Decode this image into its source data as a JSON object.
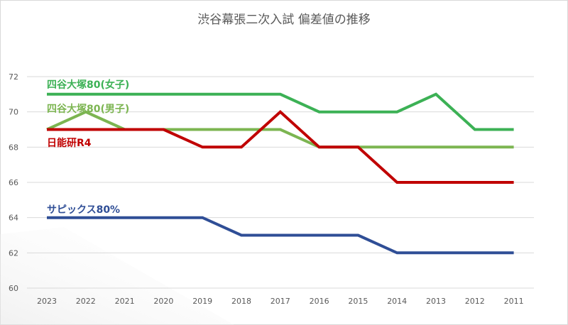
{
  "chart_data": {
    "type": "line",
    "title": "渋谷幕張二次入試 偏差値の推移",
    "xlabel": "",
    "ylabel": "",
    "categories": [
      "2023",
      "2022",
      "2021",
      "2020",
      "2019",
      "2018",
      "2017",
      "2016",
      "2015",
      "2014",
      "2013",
      "2012",
      "2011"
    ],
    "ylim": [
      60,
      72
    ],
    "yticks": [
      60,
      62,
      64,
      66,
      68,
      70,
      72
    ],
    "grid": true,
    "legend": "inline labels",
    "series": [
      {
        "name": "四谷大塚80(女子)",
        "color": "#3cb155",
        "values": [
          71,
          71,
          71,
          71,
          71,
          71,
          71,
          70,
          70,
          70,
          71,
          69,
          69
        ]
      },
      {
        "name": "四谷大塚80(男子)",
        "color": "#7cb551",
        "values": [
          69,
          70,
          69,
          69,
          69,
          69,
          69,
          68,
          68,
          68,
          68,
          68,
          68
        ]
      },
      {
        "name": "日能研R4",
        "color": "#c00000",
        "values": [
          69,
          69,
          69,
          69,
          68,
          68,
          70,
          68,
          68,
          66,
          66,
          66,
          66
        ]
      },
      {
        "name": "サピックス80%",
        "color": "#2f4e96",
        "values": [
          64,
          64,
          64,
          64,
          64,
          63,
          63,
          63,
          63,
          62,
          62,
          62,
          62
        ]
      }
    ]
  }
}
